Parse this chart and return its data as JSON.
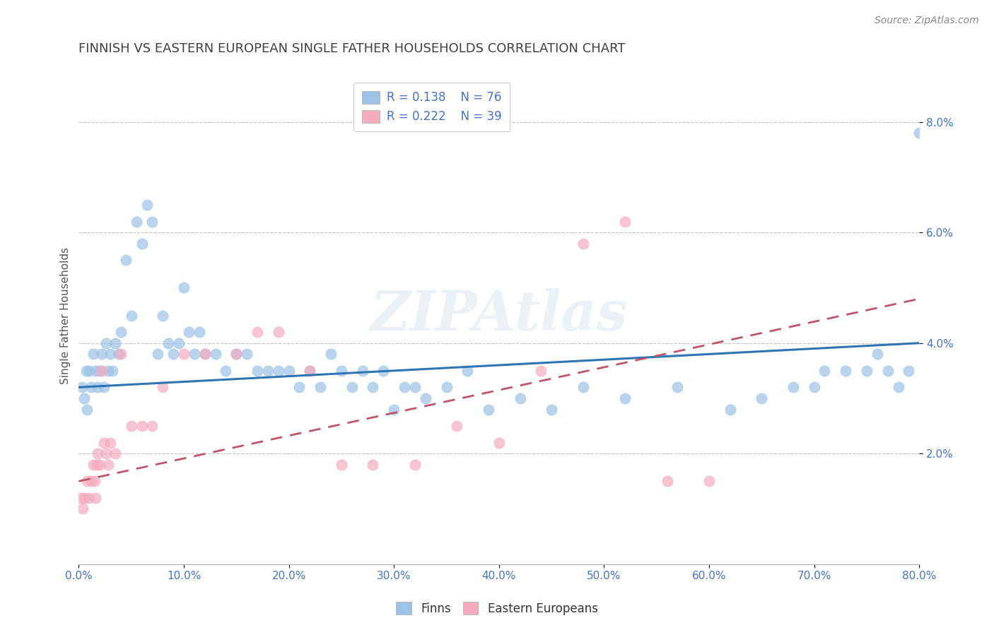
{
  "title": "FINNISH VS EASTERN EUROPEAN SINGLE FATHER HOUSEHOLDS CORRELATION CHART",
  "source": "Source: ZipAtlas.com",
  "xlim": [
    0,
    80
  ],
  "ylim": [
    0,
    9.0
  ],
  "legend_finns_label": "Finns",
  "legend_ee_label": "Eastern Europeans",
  "finns_R": "0.138",
  "finns_N": "76",
  "ee_R": "0.222",
  "ee_N": "39",
  "finns_color": "#9dc3e6",
  "ee_color": "#f4acbe",
  "trend_finns_color": "#2e75b6",
  "trend_ee_color": "#c0546a",
  "background_color": "#ffffff",
  "grid_color": "#c0c0c0",
  "watermark": "ZIPAtlas",
  "title_color": "#404040",
  "axis_tick_color": "#4472c4",
  "ylabel_text": "Single Father Households",
  "finns_x": [
    0.3,
    0.5,
    0.7,
    0.8,
    1.0,
    1.2,
    1.4,
    1.6,
    1.8,
    2.0,
    2.2,
    2.4,
    2.6,
    2.8,
    3.0,
    3.2,
    3.5,
    3.8,
    4.0,
    4.5,
    5.0,
    5.5,
    6.0,
    6.5,
    7.0,
    7.5,
    8.0,
    8.5,
    9.0,
    9.5,
    10.0,
    10.5,
    11.0,
    11.5,
    12.0,
    13.0,
    14.0,
    15.0,
    16.0,
    17.0,
    18.0,
    19.0,
    20.0,
    21.0,
    22.0,
    23.0,
    24.0,
    25.0,
    26.0,
    27.0,
    28.0,
    29.0,
    30.0,
    31.0,
    32.0,
    33.0,
    35.0,
    37.0,
    39.0,
    42.0,
    45.0,
    48.0,
    52.0,
    57.0,
    62.0,
    65.0,
    68.0,
    70.0,
    71.0,
    73.0,
    75.0,
    76.0,
    77.0,
    78.0,
    79.0,
    80.0
  ],
  "finns_y": [
    3.2,
    3.0,
    3.5,
    2.8,
    3.5,
    3.2,
    3.8,
    3.5,
    3.2,
    3.5,
    3.8,
    3.2,
    4.0,
    3.5,
    3.8,
    3.5,
    4.0,
    3.8,
    4.2,
    5.5,
    4.5,
    6.2,
    5.8,
    6.5,
    6.2,
    3.8,
    4.5,
    4.0,
    3.8,
    4.0,
    5.0,
    4.2,
    3.8,
    4.2,
    3.8,
    3.8,
    3.5,
    3.8,
    3.8,
    3.5,
    3.5,
    3.5,
    3.5,
    3.2,
    3.5,
    3.2,
    3.8,
    3.5,
    3.2,
    3.5,
    3.2,
    3.5,
    2.8,
    3.2,
    3.2,
    3.0,
    3.2,
    3.5,
    2.8,
    3.0,
    2.8,
    3.2,
    3.0,
    3.2,
    2.8,
    3.0,
    3.2,
    3.2,
    3.5,
    3.5,
    3.5,
    3.8,
    3.5,
    3.2,
    3.5,
    7.8
  ],
  "ee_x": [
    0.2,
    0.4,
    0.6,
    0.8,
    1.0,
    1.2,
    1.4,
    1.5,
    1.6,
    1.7,
    1.8,
    2.0,
    2.2,
    2.4,
    2.6,
    2.8,
    3.0,
    3.5,
    4.0,
    5.0,
    6.0,
    7.0,
    8.0,
    10.0,
    12.0,
    15.0,
    17.0,
    19.0,
    22.0,
    25.0,
    28.0,
    32.0,
    36.0,
    40.0,
    44.0,
    48.0,
    52.0,
    56.0,
    60.0
  ],
  "ee_y": [
    1.2,
    1.0,
    1.2,
    1.5,
    1.2,
    1.5,
    1.8,
    1.5,
    1.2,
    1.8,
    2.0,
    1.8,
    3.5,
    2.2,
    2.0,
    1.8,
    2.2,
    2.0,
    3.8,
    2.5,
    2.5,
    2.5,
    3.2,
    3.8,
    3.8,
    3.8,
    4.2,
    4.2,
    3.5,
    1.8,
    1.8,
    1.8,
    2.5,
    2.2,
    3.5,
    5.8,
    6.2,
    1.5,
    1.5
  ],
  "trend_finns_x0": 0,
  "trend_finns_x1": 80,
  "trend_finns_y0": 3.2,
  "trend_finns_y1": 4.0,
  "trend_ee_x0": 0,
  "trend_ee_x1": 80,
  "trend_ee_y0": 1.5,
  "trend_ee_y1": 4.8
}
